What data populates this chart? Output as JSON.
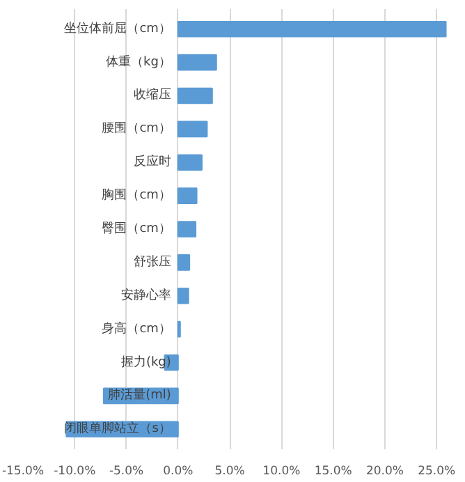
{
  "chart_data": {
    "type": "bar",
    "orientation": "horizontal",
    "categories": [
      "坐位体前屈（cm）",
      "体重（kg）",
      "收缩压",
      "腰围（cm）",
      "反应时",
      "胸围（cm）",
      "臀围（cm）",
      "舒张压",
      "安静心率",
      "身高（cm）",
      "握力(kg)",
      "肺活量(ml)",
      "闭眼单脚站立（s）"
    ],
    "values": [
      25.9,
      3.7,
      3.3,
      2.8,
      2.3,
      1.8,
      1.7,
      1.1,
      1.0,
      0.2,
      -1.3,
      -7.2,
      -10.8
    ],
    "color": "#5b9bd5",
    "xlim": [
      -15,
      26.2
    ],
    "xticks": [
      {
        "value": -15,
        "label": "-15.0%"
      },
      {
        "value": -10,
        "label": "-10.0%"
      },
      {
        "value": -5,
        "label": "-5.0%"
      },
      {
        "value": 0,
        "label": "0.0%"
      },
      {
        "value": 5,
        "label": "5.0%"
      },
      {
        "value": 10,
        "label": "10.0%"
      },
      {
        "value": 15,
        "label": "15.0%"
      },
      {
        "value": 20,
        "label": "20.0%"
      },
      {
        "value": 25,
        "label": "25.0%"
      }
    ],
    "grid": "x"
  }
}
